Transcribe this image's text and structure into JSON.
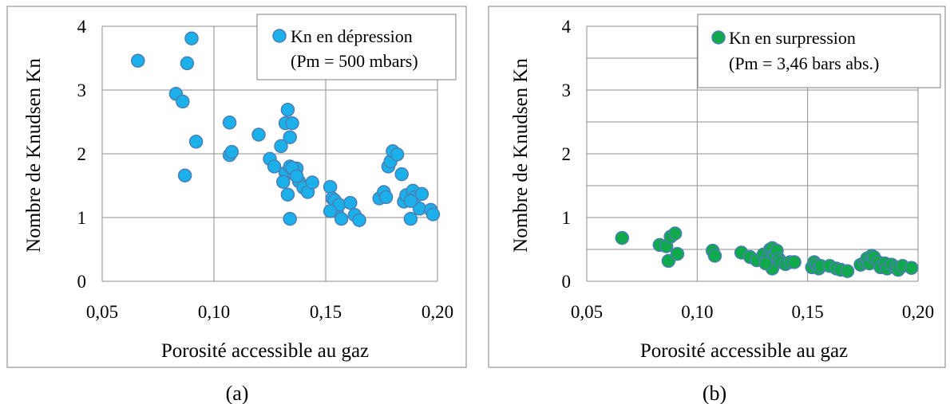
{
  "chart_data": [
    {
      "type": "scatter",
      "caption": "(a)",
      "xlabel": "Porosité accessible au gaz",
      "ylabel": "Nombre de Knudsen Kn",
      "xlim": [
        0.05,
        0.2
      ],
      "ylim": [
        0,
        4
      ],
      "xticks": [
        "0,05",
        "0,10",
        "0,15",
        "0,20"
      ],
      "yticks": [
        "0",
        "1",
        "2",
        "3",
        "4"
      ],
      "grid": {
        "vertical": true,
        "horizontal": "major"
      },
      "legend": {
        "position": "top-right",
        "line1": "Kn en dépression",
        "line2": "(Pm = 500 mbars)"
      },
      "colors": {
        "fill": "#1cb0ea",
        "stroke": "#4a7fb5"
      },
      "series": [
        {
          "x": [
            0.066,
            0.083,
            0.086,
            0.088,
            0.09,
            0.092,
            0.087,
            0.107,
            0.107,
            0.108,
            0.12,
            0.125,
            0.127,
            0.13,
            0.132,
            0.133,
            0.134,
            0.135,
            0.137,
            0.132,
            0.134,
            0.136,
            0.138,
            0.14,
            0.142,
            0.144,
            0.131,
            0.133,
            0.135,
            0.137,
            0.134,
            0.152,
            0.153,
            0.154,
            0.155,
            0.156,
            0.157,
            0.152,
            0.161,
            0.163,
            0.165,
            0.174,
            0.176,
            0.178,
            0.177,
            0.179,
            0.18,
            0.182,
            0.184,
            0.185,
            0.186,
            0.188,
            0.189,
            0.19,
            0.192,
            0.193,
            0.188,
            0.197,
            0.198
          ],
          "y": [
            3.46,
            2.94,
            2.82,
            3.42,
            3.81,
            2.19,
            1.66,
            2.49,
            1.98,
            2.03,
            2.3,
            1.92,
            1.8,
            2.12,
            2.48,
            2.69,
            2.26,
            2.48,
            1.77,
            1.7,
            1.8,
            1.68,
            1.57,
            1.47,
            1.4,
            1.55,
            1.56,
            1.36,
            1.78,
            1.65,
            0.98,
            1.48,
            1.3,
            1.27,
            1.1,
            1.2,
            0.98,
            1.1,
            1.23,
            1.04,
            0.96,
            1.3,
            1.4,
            1.8,
            1.32,
            1.88,
            2.04,
            1.99,
            1.68,
            1.25,
            1.35,
            0.98,
            1.42,
            1.32,
            1.14,
            1.37,
            1.26,
            1.12,
            1.05
          ]
        }
      ]
    },
    {
      "type": "scatter",
      "caption": "(b)",
      "xlabel": "Porosité accessible au gaz",
      "ylabel": "Nombre de Knudsen Kn",
      "xlim": [
        0.05,
        0.2
      ],
      "ylim": [
        0,
        4
      ],
      "xticks": [
        "0,05",
        "0,10",
        "0,15",
        "0,20"
      ],
      "yticks": [
        "0",
        "1",
        "2",
        "3",
        "4"
      ],
      "grid": {
        "vertical": true,
        "horizontal": "major-and-minor"
      },
      "legend": {
        "position": "top-right",
        "line1": "Kn en surpression",
        "line2": "(Pm = 3,46 bars abs.)"
      },
      "colors": {
        "fill": "#10a94b",
        "stroke": "#4a7fb5"
      },
      "series": [
        {
          "x": [
            0.066,
            0.083,
            0.086,
            0.087,
            0.088,
            0.09,
            0.091,
            0.107,
            0.108,
            0.12,
            0.124,
            0.127,
            0.13,
            0.132,
            0.133,
            0.134,
            0.135,
            0.136,
            0.137,
            0.134,
            0.138,
            0.14,
            0.142,
            0.144,
            0.131,
            0.152,
            0.153,
            0.154,
            0.155,
            0.156,
            0.16,
            0.163,
            0.165,
            0.168,
            0.174,
            0.176,
            0.177,
            0.178,
            0.179,
            0.18,
            0.182,
            0.183,
            0.185,
            0.186,
            0.188,
            0.19,
            0.191,
            0.193,
            0.197
          ],
          "y": [
            0.68,
            0.57,
            0.55,
            0.32,
            0.7,
            0.75,
            0.43,
            0.48,
            0.4,
            0.45,
            0.38,
            0.33,
            0.42,
            0.37,
            0.5,
            0.52,
            0.42,
            0.48,
            0.35,
            0.2,
            0.3,
            0.27,
            0.3,
            0.3,
            0.28,
            0.22,
            0.3,
            0.26,
            0.2,
            0.24,
            0.24,
            0.2,
            0.18,
            0.16,
            0.26,
            0.3,
            0.36,
            0.28,
            0.4,
            0.38,
            0.3,
            0.22,
            0.28,
            0.2,
            0.26,
            0.22,
            0.18,
            0.24,
            0.21
          ]
        }
      ]
    }
  ]
}
